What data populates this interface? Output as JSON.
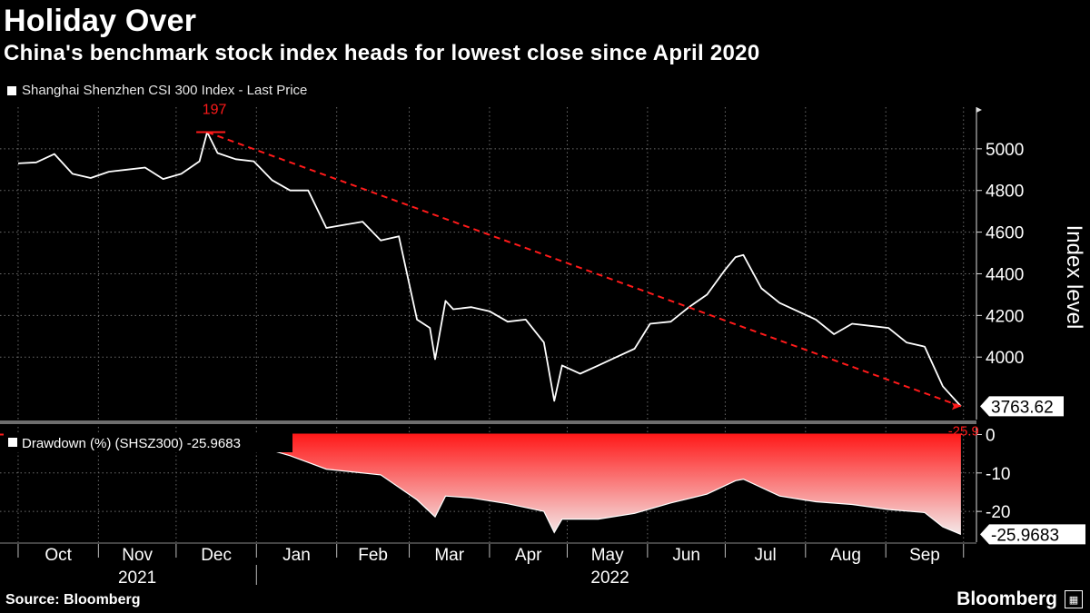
{
  "title": "Holiday Over",
  "subtitle": "China's benchmark stock index heads for lowest close since April 2020",
  "source": "Source: Bloomberg",
  "brand": "Bloomberg",
  "colors": {
    "background": "#000000",
    "price_line": "#ffffff",
    "accent": "#ff1a1a",
    "grid": "#6b6b6b"
  },
  "chart_data": [
    {
      "type": "line",
      "legend": "Shanghai Shenzhen CSI 300 Index - Last Price",
      "ylabel": "Index level",
      "ylim": [
        3700,
        5200
      ],
      "yticks": [
        4000,
        4200,
        4400,
        4600,
        4800,
        5000
      ],
      "ytick_labels": [
        "4000",
        "4200",
        "4400",
        "4600",
        "4800",
        "5000"
      ],
      "last_value_label": "3763.62",
      "annotation_days_label": "197",
      "annotation_pct_label": "-25.9",
      "trend_line": {
        "from": [
          "2021-12-13",
          5080
        ],
        "to": [
          "2022-09-30",
          3763.62
        ]
      },
      "x": [
        "2021-10-01",
        "2021-10-08",
        "2021-10-15",
        "2021-10-22",
        "2021-10-29",
        "2021-11-05",
        "2021-11-12",
        "2021-11-19",
        "2021-11-26",
        "2021-12-03",
        "2021-12-10",
        "2021-12-13",
        "2021-12-17",
        "2021-12-24",
        "2021-12-31",
        "2022-01-07",
        "2022-01-14",
        "2022-01-21",
        "2022-01-28",
        "2022-02-11",
        "2022-02-18",
        "2022-02-25",
        "2022-03-04",
        "2022-03-09",
        "2022-03-11",
        "2022-03-15",
        "2022-03-18",
        "2022-03-25",
        "2022-04-01",
        "2022-04-08",
        "2022-04-15",
        "2022-04-22",
        "2022-04-26",
        "2022-04-29",
        "2022-05-06",
        "2022-05-13",
        "2022-05-20",
        "2022-05-27",
        "2022-06-02",
        "2022-06-10",
        "2022-06-17",
        "2022-06-24",
        "2022-07-01",
        "2022-07-05",
        "2022-07-08",
        "2022-07-15",
        "2022-07-22",
        "2022-07-29",
        "2022-08-05",
        "2022-08-12",
        "2022-08-19",
        "2022-08-26",
        "2022-09-02",
        "2022-09-09",
        "2022-09-16",
        "2022-09-23",
        "2022-09-30"
      ],
      "values": [
        4930,
        4935,
        4975,
        4880,
        4860,
        4890,
        4900,
        4910,
        4855,
        4880,
        4940,
        5080,
        4980,
        4950,
        4940,
        4850,
        4800,
        4800,
        4620,
        4650,
        4560,
        4580,
        4180,
        4140,
        3990,
        4270,
        4230,
        4240,
        4220,
        4170,
        4180,
        4070,
        3790,
        3960,
        3920,
        3960,
        4000,
        4040,
        4160,
        4170,
        4240,
        4300,
        4420,
        4480,
        4490,
        4330,
        4260,
        4220,
        4180,
        4110,
        4160,
        4150,
        4140,
        4070,
        4050,
        3860,
        3763.62
      ]
    },
    {
      "type": "area",
      "legend": "Drawdown (%) (SHSZ300) -25.9683",
      "ylim": [
        -28,
        2
      ],
      "yticks": [
        0,
        -10,
        -20
      ],
      "ytick_labels": [
        "0",
        "-10",
        "-20"
      ],
      "last_value_label": "-25.9683",
      "x": [
        "2021-10-01",
        "2021-10-15",
        "2021-11-05",
        "2021-11-26",
        "2021-12-10",
        "2021-12-13",
        "2021-12-31",
        "2022-01-14",
        "2022-01-28",
        "2022-02-18",
        "2022-03-04",
        "2022-03-11",
        "2022-03-15",
        "2022-03-25",
        "2022-04-08",
        "2022-04-22",
        "2022-04-26",
        "2022-04-29",
        "2022-05-13",
        "2022-05-27",
        "2022-06-10",
        "2022-06-24",
        "2022-07-05",
        "2022-07-08",
        "2022-07-22",
        "2022-08-05",
        "2022-08-19",
        "2022-09-02",
        "2022-09-16",
        "2022-09-23",
        "2022-09-30"
      ],
      "values": [
        -0.5,
        -0.3,
        -1.2,
        -2.5,
        -1.0,
        0,
        -2.8,
        -5.5,
        -9.0,
        -10.5,
        -17.0,
        -21.4,
        -16.0,
        -16.5,
        -18.0,
        -20.0,
        -25.5,
        -22.0,
        -22.0,
        -20.5,
        -17.8,
        -15.5,
        -12.0,
        -11.6,
        -16.0,
        -17.5,
        -18.2,
        -19.5,
        -20.3,
        -24.0,
        -25.9683
      ]
    }
  ],
  "x_axis": {
    "months": [
      "Oct",
      "Nov",
      "Dec",
      "Jan",
      "Feb",
      "Mar",
      "Apr",
      "May",
      "Jun",
      "Jul",
      "Aug",
      "Sep"
    ],
    "years": [
      "2021",
      "2022"
    ]
  }
}
